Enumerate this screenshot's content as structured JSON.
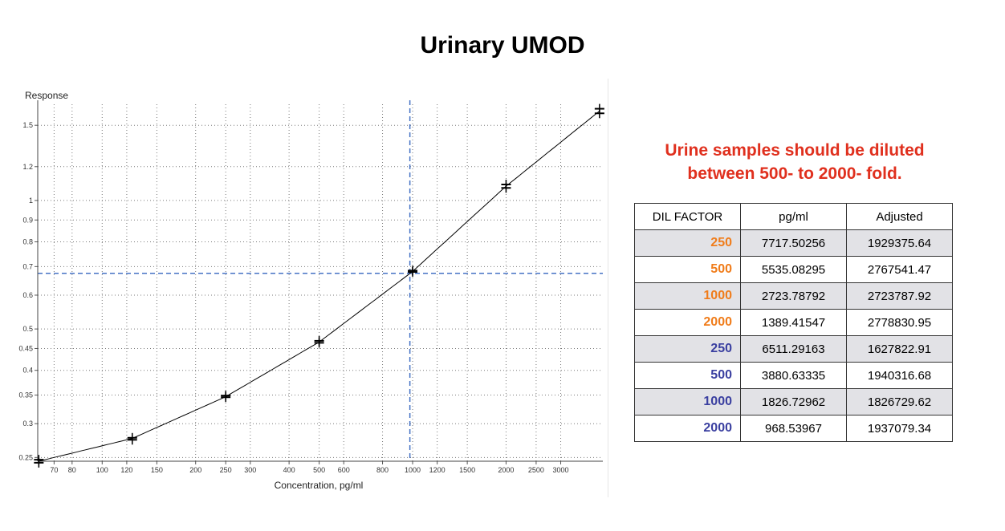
{
  "title": "Urinary UMOD",
  "note": [
    "Urine samples should be diluted",
    "between 500- to 2000- fold."
  ],
  "colors": {
    "note": "#e0301e",
    "orange_group": "#f07c1a",
    "blue_group": "#3a3fa0",
    "curve": "#000000",
    "marker_line": "#4472c4"
  },
  "chart_data": {
    "type": "scatter",
    "xlabel": "Concentration, pg/ml",
    "ylabel": "Response",
    "x_scale": "log",
    "y_scale": "log",
    "xlim": [
      62,
      4100
    ],
    "ylim": [
      0.245,
      1.68
    ],
    "grid": true,
    "x_ticks": [
      70,
      80,
      100,
      120,
      150,
      200,
      250,
      300,
      400,
      500,
      600,
      800,
      1000,
      1200,
      1500,
      2000,
      2500,
      3000
    ],
    "y_ticks": [
      0.25,
      0.3,
      0.35,
      0.4,
      0.45,
      0.5,
      0.6,
      0.7,
      0.8,
      0.9,
      1,
      1.2,
      1.5
    ],
    "points": {
      "x": [
        62.5,
        62.5,
        125,
        125,
        250,
        250,
        500,
        500,
        1000,
        1000,
        2000,
        2000,
        4000,
        4000
      ],
      "y": [
        0.247,
        0.243,
        0.278,
        0.275,
        0.349,
        0.346,
        0.469,
        0.464,
        0.685,
        0.68,
        1.09,
        1.07,
        1.64,
        1.6
      ]
    },
    "curve": {
      "x": [
        62.5,
        125,
        250,
        500,
        1000,
        2000,
        4000
      ],
      "y": [
        0.245,
        0.277,
        0.347,
        0.466,
        0.682,
        1.08,
        1.62
      ]
    },
    "reference_lines": {
      "x": 980,
      "y": 0.675
    }
  },
  "table": {
    "headers": [
      "DIL FACTOR",
      "pg/ml",
      "Adjusted"
    ],
    "rows": [
      {
        "dil": "250",
        "pgml": "7717.50256",
        "adjusted": "1929375.64"
      },
      {
        "dil": "500",
        "pgml": "5535.08295",
        "adjusted": "2767541.47"
      },
      {
        "dil": "1000",
        "pgml": "2723.78792",
        "adjusted": "2723787.92"
      },
      {
        "dil": "2000",
        "pgml": "1389.41547",
        "adjusted": "2778830.95"
      },
      {
        "dil": "250",
        "pgml": "6511.29163",
        "adjusted": "1627822.91"
      },
      {
        "dil": "500",
        "pgml": "3880.63335",
        "adjusted": "1940316.68"
      },
      {
        "dil": "1000",
        "pgml": "1826.72962",
        "adjusted": "1826729.62"
      },
      {
        "dil": "2000",
        "pgml": "968.53967",
        "adjusted": "1937079.34"
      }
    ]
  }
}
